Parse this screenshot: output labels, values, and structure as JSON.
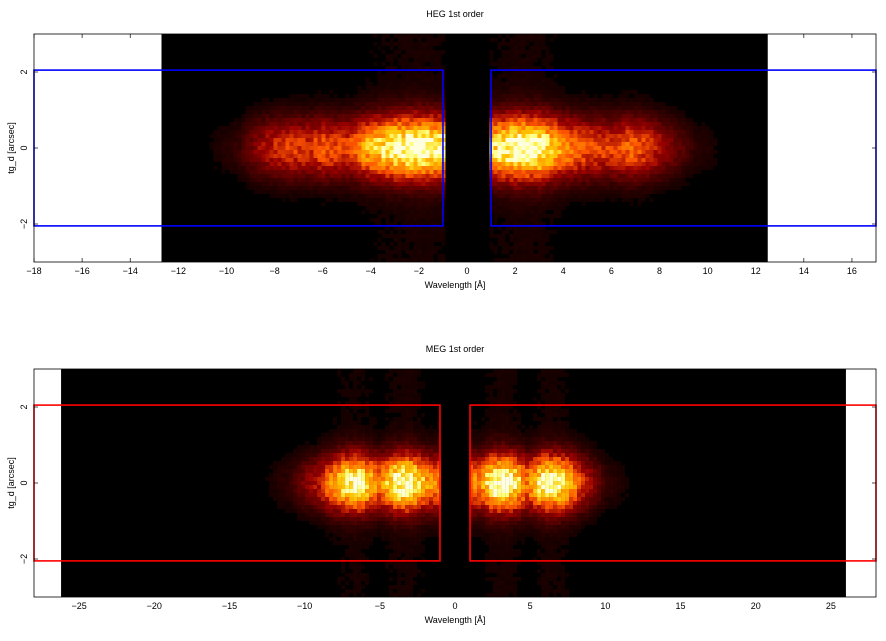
{
  "chart_data": [
    {
      "type": "heatmap",
      "title": "HEG 1st order",
      "xlabel": "Wavelength [Å]",
      "ylabel": "tg_d [arcsec]",
      "xlim": [
        -18,
        17
      ],
      "ylim": [
        -3,
        3
      ],
      "xticks": [
        -18,
        -16,
        -14,
        -12,
        -10,
        -8,
        -6,
        -4,
        -2,
        0,
        2,
        4,
        6,
        8,
        10,
        12,
        14,
        16
      ],
      "yticks": [
        -2,
        0,
        2
      ],
      "data_extent_x": [
        -12.7,
        12.5
      ],
      "gap_x": [
        -0.9,
        0.9
      ],
      "regions": [
        {
          "x": [
            -18,
            -1.0
          ],
          "y": [
            -2.05,
            2.05
          ]
        },
        {
          "x": [
            1.0,
            17
          ],
          "y": [
            -2.05,
            2.05
          ]
        }
      ],
      "region_color": "#0000ff",
      "spatial_sigma": 0.55,
      "intensity_profile": [
        {
          "x": -11.0,
          "v": 0.02
        },
        {
          "x": -9.5,
          "v": 0.1
        },
        {
          "x": -8.5,
          "v": 0.3
        },
        {
          "x": -7.5,
          "v": 0.42
        },
        {
          "x": -6.5,
          "v": 0.4
        },
        {
          "x": -6.0,
          "v": 0.48
        },
        {
          "x": -5.0,
          "v": 0.42
        },
        {
          "x": -4.0,
          "v": 0.7
        },
        {
          "x": -3.0,
          "v": 0.9
        },
        {
          "x": -2.0,
          "v": 1.0
        },
        {
          "x": -1.2,
          "v": 0.9
        },
        {
          "x": 1.2,
          "v": 0.8
        },
        {
          "x": 2.0,
          "v": 1.0
        },
        {
          "x": 3.0,
          "v": 0.95
        },
        {
          "x": 4.0,
          "v": 0.6
        },
        {
          "x": 5.0,
          "v": 0.45
        },
        {
          "x": 6.0,
          "v": 0.42
        },
        {
          "x": 6.8,
          "v": 0.5
        },
        {
          "x": 7.5,
          "v": 0.42
        },
        {
          "x": 8.5,
          "v": 0.22
        },
        {
          "x": 9.5,
          "v": 0.08
        },
        {
          "x": 11.0,
          "v": 0.02
        }
      ]
    },
    {
      "type": "heatmap",
      "title": "MEG 1st order",
      "xlabel": "Wavelength [Å]",
      "ylabel": "tg_d [arcsec]",
      "xlim": [
        -28,
        28
      ],
      "ylim": [
        -3,
        3
      ],
      "xticks": [
        -25,
        -20,
        -15,
        -10,
        -5,
        0,
        5,
        10,
        15,
        20,
        25
      ],
      "yticks": [
        -2,
        0,
        2
      ],
      "data_extent_x": [
        -26.2,
        26.0
      ],
      "gap_x": [
        -0.9,
        0.9
      ],
      "regions": [
        {
          "x": [
            -28,
            -1.0
          ],
          "y": [
            -2.05,
            2.05
          ]
        },
        {
          "x": [
            1.0,
            28
          ],
          "y": [
            -2.05,
            2.05
          ]
        }
      ],
      "region_color": "#ff0000",
      "spatial_sigma": 0.5,
      "intensity_profile": [
        {
          "x": -13.0,
          "v": 0.02
        },
        {
          "x": -11.0,
          "v": 0.1
        },
        {
          "x": -9.0,
          "v": 0.35
        },
        {
          "x": -7.5,
          "v": 0.8
        },
        {
          "x": -6.5,
          "v": 0.95
        },
        {
          "x": -5.0,
          "v": 0.55
        },
        {
          "x": -4.0,
          "v": 0.9
        },
        {
          "x": -3.0,
          "v": 1.0
        },
        {
          "x": -1.8,
          "v": 0.6
        },
        {
          "x": 1.8,
          "v": 0.6
        },
        {
          "x": 2.5,
          "v": 0.95
        },
        {
          "x": 3.5,
          "v": 1.0
        },
        {
          "x": 4.8,
          "v": 0.55
        },
        {
          "x": 6.0,
          "v": 0.95
        },
        {
          "x": 7.0,
          "v": 0.9
        },
        {
          "x": 8.5,
          "v": 0.4
        },
        {
          "x": 10.0,
          "v": 0.1
        },
        {
          "x": 12.0,
          "v": 0.02
        }
      ]
    }
  ]
}
